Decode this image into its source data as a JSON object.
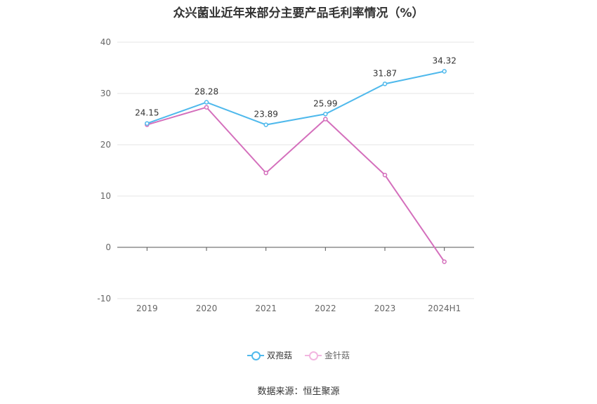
{
  "chart_data": {
    "type": "line",
    "title": "众兴菌业近年来部分主要产品毛利率情况（%）",
    "categories": [
      "2019",
      "2020",
      "2021",
      "2022",
      "2023",
      "2024H1"
    ],
    "ylim": [
      -10,
      40
    ],
    "yticks": [
      -10,
      0,
      10,
      20,
      30,
      40
    ],
    "grid": true,
    "legend_position": "bottom",
    "series": [
      {
        "name": "双孢菇",
        "color": "#4fb9ec",
        "values": [
          24.15,
          28.28,
          23.89,
          25.99,
          31.87,
          34.32
        ],
        "labels": [
          "24.15",
          "28.28",
          "23.89",
          "25.99",
          "31.87",
          "34.32"
        ]
      },
      {
        "name": "金针菇",
        "color": "#d46fbc",
        "values": [
          23.9,
          27.3,
          14.5,
          25.0,
          14.1,
          -2.8
        ],
        "labels": []
      }
    ]
  },
  "source": "数据来源：恒生聚源"
}
